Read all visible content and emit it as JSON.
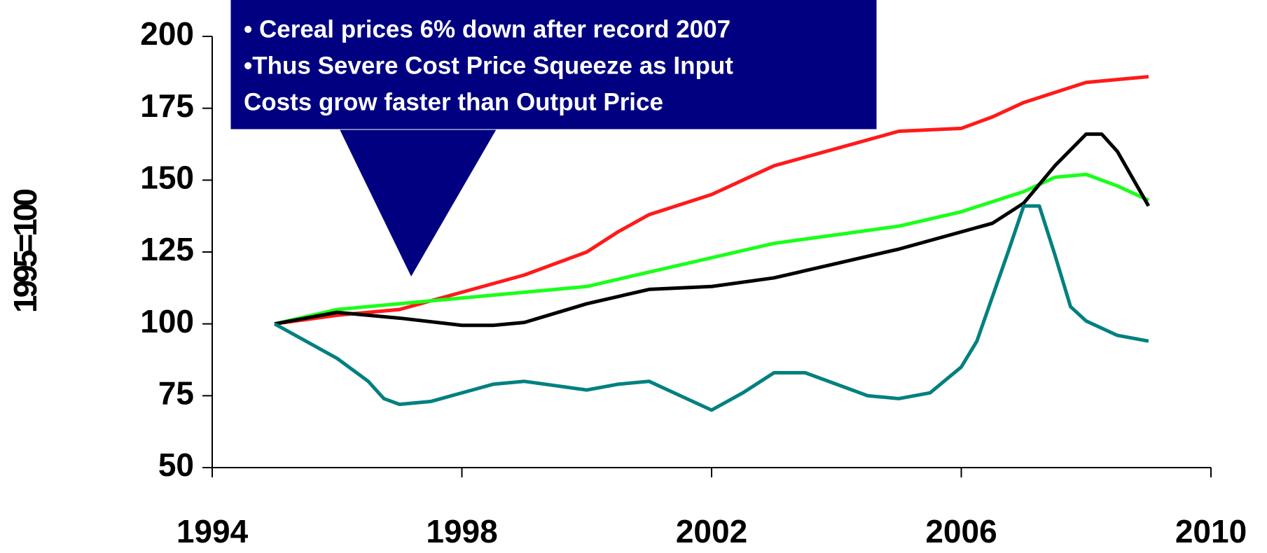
{
  "chart_data": {
    "type": "line",
    "ylabel": "1995=100",
    "annotation": [
      "• Cereal prices 6% down after record 2007",
      "•Thus Severe Cost Price Squeeze as Input",
      "Costs grow faster than Output Price"
    ],
    "xlim": [
      1994,
      2010
    ],
    "xticks": [
      1994,
      1998,
      2002,
      2006,
      2010
    ],
    "ylim": [
      50,
      200
    ],
    "yticks": [
      50,
      75,
      100,
      125,
      150,
      175,
      200
    ],
    "series": [
      {
        "color": "#ff1a1a",
        "x": [
          1995,
          1996,
          1997,
          1997.5,
          1998,
          1999,
          2000,
          2000.5,
          2001,
          2002,
          2002.5,
          2003,
          2004,
          2005,
          2006,
          2006.5,
          2007,
          2008,
          2009
        ],
        "values": [
          100,
          103,
          105,
          108,
          111,
          117,
          125,
          132,
          138,
          145,
          150,
          155,
          161,
          167,
          168,
          172,
          177,
          184,
          186
        ]
      },
      {
        "color": "#1aff1a",
        "x": [
          1995,
          1996,
          1997,
          1998,
          1999,
          2000,
          2001,
          2002,
          2003,
          2004,
          2005,
          2006,
          2007,
          2007.5,
          2008,
          2008.5,
          2009
        ],
        "values": [
          100,
          105,
          107,
          109,
          111,
          113,
          118,
          123,
          128,
          131,
          134,
          139,
          146,
          151,
          152,
          148,
          143
        ]
      },
      {
        "color": "#000000",
        "x": [
          1995,
          1996,
          1997,
          1998,
          1998.5,
          1999,
          2000,
          2001,
          2002,
          2003,
          2004,
          2005,
          2006,
          2006.5,
          2007,
          2007.5,
          2008,
          2008.25,
          2008.5,
          2009
        ],
        "values": [
          100,
          104,
          102,
          99.5,
          99.5,
          100.5,
          107,
          112,
          113,
          116,
          121,
          126,
          132,
          135,
          142,
          155,
          166,
          166,
          160,
          141
        ]
      },
      {
        "color": "#008080",
        "x": [
          1995,
          1995.5,
          1996,
          1996.5,
          1996.75,
          1997,
          1997.5,
          1998,
          1998.5,
          1999,
          2000,
          2000.5,
          2001,
          2001.5,
          2002,
          2002.5,
          2003,
          2003.5,
          2004,
          2004.5,
          2005,
          2005.5,
          2006,
          2006.25,
          2006.75,
          2007,
          2007.25,
          2007.5,
          2007.75,
          2008,
          2008.5,
          2009
        ],
        "values": [
          100,
          94,
          88,
          80,
          74,
          72,
          73,
          76,
          79,
          80,
          77,
          79,
          80,
          75,
          70,
          76,
          83,
          83,
          79,
          75,
          74,
          76,
          85,
          94,
          125,
          141,
          141,
          124,
          106,
          101,
          96,
          94
        ]
      }
    ]
  }
}
